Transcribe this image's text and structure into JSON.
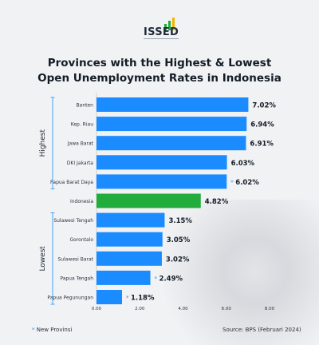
{
  "brand": {
    "name": "ISSED"
  },
  "title_line1": "Provinces with the Highest & Lowest",
  "title_line2": "Open Unemployment Rates in Indonesia",
  "footnote": {
    "marker": "*",
    "text": "New Provinsi"
  },
  "source": "Source: BPS (Februari 2024)",
  "colors": {
    "bar": "#1a8cff",
    "highlight": "#21ac3c",
    "marker": "#1f8cff"
  },
  "chart_data": {
    "type": "bar",
    "orientation": "horizontal",
    "categories": [
      "Banten",
      "Kep. Riau",
      "Jawa Barat",
      "DKI Jakarta",
      "Papua Barat Daya",
      "Indonesia",
      "Sulawesi Tengah",
      "Gorontalo",
      "Sulawesi Barat",
      "Papua Tengah",
      "Papua Pegunungan"
    ],
    "values": [
      7.02,
      6.94,
      6.91,
      6.03,
      6.02,
      4.82,
      3.15,
      3.05,
      3.02,
      2.49,
      1.18
    ],
    "value_labels": [
      "7.02%",
      "6.94%",
      "6.91%",
      "6.03%",
      "6.02%",
      "4.82%",
      "3.15%",
      "3.05%",
      "3.02%",
      "2.49%",
      "1.18%"
    ],
    "new_province": [
      false,
      false,
      false,
      false,
      true,
      false,
      false,
      false,
      false,
      true,
      true
    ],
    "highlight_index": 5,
    "xlim": [
      0,
      8
    ],
    "xticks": [
      0,
      2,
      4,
      6,
      8
    ],
    "xtick_labels": [
      "0.00",
      "2.00",
      "4.00",
      "6.00",
      "8.00"
    ],
    "groups": [
      {
        "label": "Highest",
        "from": 0,
        "to": 4
      },
      {
        "label": "Lowest",
        "from": 6,
        "to": 10
      }
    ],
    "grid": false
  }
}
